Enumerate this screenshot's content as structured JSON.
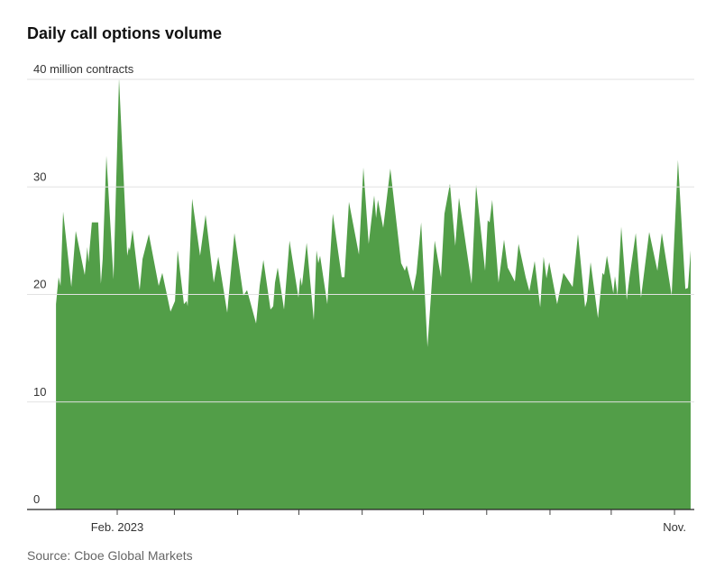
{
  "chart_data": {
    "type": "area",
    "title": "Daily call options volume",
    "ylabel": "million contracts",
    "xlabel": "",
    "x_unit": "day of year 2023",
    "ylim": [
      0,
      40
    ],
    "y_ticks": [
      {
        "value": 0,
        "label": "0"
      },
      {
        "value": 10,
        "label": "10"
      },
      {
        "value": 20,
        "label": "20"
      },
      {
        "value": 30,
        "label": "30"
      },
      {
        "value": 40,
        "label": "40 million contracts"
      }
    ],
    "x_ticks": [
      {
        "day": 32,
        "label": "Feb. 2023"
      },
      {
        "day": 60,
        "label": ""
      },
      {
        "day": 91,
        "label": ""
      },
      {
        "day": 121,
        "label": ""
      },
      {
        "day": 152,
        "label": ""
      },
      {
        "day": 182,
        "label": ""
      },
      {
        "day": 213,
        "label": ""
      },
      {
        "day": 244,
        "label": ""
      },
      {
        "day": 274,
        "label": ""
      },
      {
        "day": 305,
        "label": "Nov."
      }
    ],
    "grid": true,
    "color": "#529e48",
    "x": [
      2.0,
      3.3,
      4.2,
      5.5,
      9.5,
      11.7,
      16.1,
      17.4,
      17.9,
      19.6,
      22.7,
      24.0,
      24.9,
      26.7,
      30.2,
      32.9,
      36.9,
      37.7,
      38.2,
      39.5,
      43.0,
      44.4,
      47.5,
      52.3,
      54.1,
      58.1,
      60.3,
      61.6,
      64.7,
      66.0,
      66.5,
      68.7,
      72.6,
      75.3,
      79.3,
      81.5,
      85.9,
      89.4,
      93.8,
      95.6,
      100.0,
      101.8,
      103.6,
      107.1,
      108.4,
      109.3,
      110.6,
      113.7,
      116.4,
      120.8,
      121.7,
      122.5,
      124.8,
      128.3,
      129.6,
      130.5,
      131.4,
      134.9,
      137.6,
      142.0,
      143.3,
      145.5,
      150.4,
      152.6,
      155.2,
      157.9,
      158.8,
      159.7,
      162.3,
      163.6,
      165.8,
      171.1,
      172.9,
      173.8,
      176.9,
      178.6,
      180.9,
      184.0,
      187.5,
      190.6,
      192.3,
      195.0,
      197.6,
      199.4,
      205.6,
      207.8,
      212.2,
      213.5,
      214.4,
      215.7,
      218.8,
      221.5,
      223.3,
      226.8,
      228.6,
      232.1,
      233.9,
      236.5,
      239.2,
      240.9,
      242.3,
      243.6,
      247.5,
      250.6,
      255.1,
      257.7,
      261.2,
      262.1,
      263.9,
      267.5,
      269.7,
      270.5,
      271.9,
      275.0,
      275.8,
      277.1,
      278.9,
      281.6,
      282.9,
      286.0,
      288.6,
      292.6,
      296.6,
      298.8,
      303.6,
      306.7,
      310.3,
      311.6,
      312.9
    ],
    "values": [
      19.1,
      21.6,
      20.8,
      27.7,
      20.7,
      25.9,
      21.8,
      24.4,
      23.0,
      26.7,
      26.7,
      21.0,
      23.3,
      32.9,
      21.4,
      40.1,
      23.6,
      24.4,
      24.1,
      26.0,
      20.4,
      23.3,
      25.6,
      20.8,
      22.0,
      18.4,
      19.4,
      24.1,
      19.1,
      19.4,
      18.9,
      28.9,
      23.6,
      27.4,
      21.1,
      23.5,
      18.3,
      25.7,
      19.9,
      20.4,
      17.3,
      20.8,
      23.2,
      18.6,
      18.9,
      21.1,
      22.5,
      18.6,
      25.0,
      19.7,
      21.6,
      20.8,
      24.8,
      17.6,
      24.1,
      22.9,
      23.6,
      19.1,
      27.5,
      21.6,
      21.6,
      28.6,
      23.7,
      31.8,
      24.7,
      29.2,
      27.1,
      28.8,
      26.2,
      28.2,
      31.7,
      22.9,
      22.2,
      22.7,
      20.3,
      22.0,
      26.7,
      15.1,
      25.0,
      21.6,
      27.5,
      30.3,
      24.5,
      29.0,
      21.0,
      30.2,
      22.2,
      26.9,
      26.7,
      28.8,
      21.1,
      25.1,
      22.5,
      21.2,
      24.7,
      21.6,
      20.3,
      23.1,
      18.8,
      23.5,
      21.5,
      23.0,
      19.1,
      22.0,
      20.7,
      25.6,
      18.8,
      19.4,
      23.0,
      17.8,
      22.0,
      21.8,
      23.6,
      20.1,
      21.7,
      19.9,
      26.3,
      19.5,
      21.5,
      25.7,
      19.7,
      25.8,
      22.2,
      25.7,
      19.9,
      32.5,
      20.5,
      20.6,
      24.1
    ]
  },
  "source": "Source: Cboe Global Markets"
}
